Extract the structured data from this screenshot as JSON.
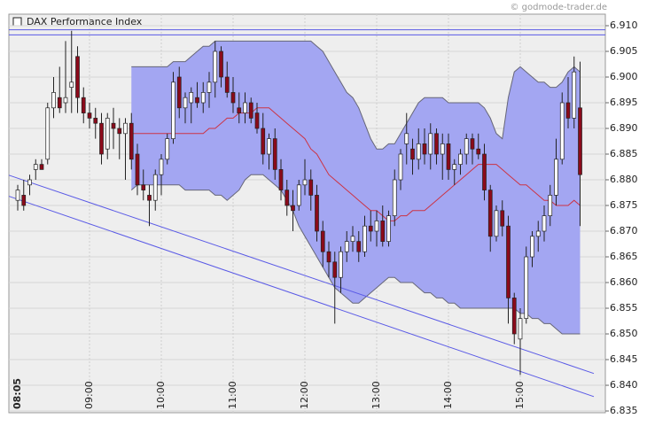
{
  "chart_data": {
    "type": "candlestick",
    "title": "DAX Performance Index",
    "source": "© godmode-trader.de",
    "categories": [
      "08:05",
      null,
      null,
      null,
      null,
      null,
      null,
      null,
      null,
      null,
      null,
      null,
      "09:00",
      null,
      null,
      null,
      null,
      null,
      null,
      null,
      null,
      null,
      null,
      null,
      "10:00",
      null,
      null,
      null,
      null,
      null,
      null,
      null,
      null,
      null,
      null,
      null,
      "11:00",
      null,
      null,
      null,
      null,
      null,
      null,
      null,
      null,
      null,
      null,
      null,
      "12:00",
      null,
      null,
      null,
      null,
      null,
      null,
      null,
      null,
      null,
      null,
      null,
      "13:00",
      null,
      null,
      null,
      null,
      null,
      null,
      null,
      null,
      null,
      null,
      null,
      "14:00",
      null,
      null,
      null,
      null,
      null,
      null,
      null,
      null,
      null,
      null,
      null,
      "15:00",
      null,
      null,
      null,
      null,
      null,
      null,
      null,
      null,
      null,
      null
    ],
    "candles": {
      "up_color": "#ffffff",
      "down_color": "#8b0a1a",
      "open": [
        6876,
        6877,
        6879,
        6882,
        6883,
        6884,
        6894,
        6896,
        6895,
        6898,
        6904,
        6896,
        6893,
        6892,
        6891,
        6886,
        6891,
        6890,
        6889,
        6891,
        6885,
        6879,
        6877,
        6876,
        6881,
        6884,
        6888,
        6900,
        6894,
        6895,
        6896,
        6895,
        6897,
        6899,
        6905,
        6900,
        6897,
        6894,
        6893,
        6895,
        6893,
        6890,
        6885,
        6888,
        6882,
        6878,
        6875,
        6875,
        6879,
        6880,
        6877,
        6870,
        6866,
        6864,
        6861,
        6866,
        6868,
        6868,
        6866,
        6871,
        6870,
        6872,
        6868,
        6873,
        6880,
        6887,
        6886,
        6884,
        6887,
        6885,
        6889,
        6885,
        6887,
        6882,
        6883,
        6885,
        6888,
        6886,
        6885,
        6878,
        6869,
        6874,
        6871,
        6857,
        6849,
        6853,
        6865,
        6869,
        6870,
        6873,
        6877,
        6884,
        6895,
        6892,
        6894
      ],
      "high": [
        6879,
        6880,
        6881,
        6884,
        6884,
        6895,
        6900,
        6902,
        6907,
        6909,
        6906,
        6898,
        6895,
        6894,
        6893,
        6893,
        6894,
        6892,
        6892,
        6893,
        6887,
        6882,
        6879,
        6882,
        6885,
        6889,
        6901,
        6902,
        6897,
        6898,
        6899,
        6899,
        6901,
        6907,
        6906,
        6903,
        6900,
        6897,
        6897,
        6896,
        6895,
        6893,
        6889,
        6890,
        6884,
        6880,
        6878,
        6880,
        6884,
        6882,
        6879,
        6872,
        6868,
        6866,
        6867,
        6870,
        6871,
        6870,
        6873,
        6874,
        6874,
        6875,
        6874,
        6882,
        6886,
        6893,
        6888,
        6890,
        6890,
        6891,
        6890,
        6889,
        6889,
        6884,
        6886,
        6889,
        6889,
        6889,
        6887,
        6879,
        6875,
        6876,
        6873,
        6858,
        6855,
        6867,
        6870,
        6872,
        6875,
        6879,
        6888,
        6897,
        6900,
        6904,
        6903
      ],
      "low": [
        6874,
        6874,
        6877,
        6880,
        6882,
        6883,
        6892,
        6893,
        6893,
        6893,
        6893,
        6891,
        6890,
        6888,
        6883,
        6884,
        6886,
        6884,
        6880,
        6882,
        6877,
        6876,
        6871,
        6874,
        6877,
        6883,
        6887,
        6892,
        6891,
        6891,
        6894,
        6893,
        6894,
        6896,
        6898,
        6896,
        6893,
        6891,
        6891,
        6891,
        6889,
        6883,
        6882,
        6880,
        6876,
        6873,
        6870,
        6874,
        6877,
        6874,
        6868,
        6863,
        6861,
        6852,
        6858,
        6864,
        6866,
        6864,
        6865,
        6868,
        6867,
        6867,
        6867,
        6871,
        6878,
        6883,
        6881,
        6882,
        6883,
        6882,
        6883,
        6880,
        6880,
        6879,
        6881,
        6883,
        6883,
        6884,
        6876,
        6866,
        6868,
        6869,
        6852,
        6848,
        6842,
        6852,
        6863,
        6866,
        6868,
        6871,
        6875,
        6883,
        6890,
        6890,
        6871
      ],
      "close": [
        6878,
        6875,
        6880,
        6883,
        6882,
        6894,
        6897,
        6894,
        6896,
        6899,
        6896,
        6893,
        6892,
        6891,
        6885,
        6892,
        6890,
        6889,
        6891,
        6884,
        6879,
        6878,
        6876,
        6881,
        6884,
        6888,
        6899,
        6894,
        6896,
        6897,
        6895,
        6897,
        6899,
        6905,
        6900,
        6897,
        6895,
        6893,
        6895,
        6892,
        6890,
        6885,
        6888,
        6882,
        6878,
        6875,
        6874,
        6879,
        6880,
        6877,
        6870,
        6866,
        6864,
        6861,
        6866,
        6868,
        6869,
        6866,
        6871,
        6870,
        6872,
        6868,
        6873,
        6880,
        6885,
        6889,
        6884,
        6887,
        6885,
        6889,
        6885,
        6887,
        6882,
        6883,
        6885,
        6888,
        6886,
        6885,
        6878,
        6869,
        6874,
        6871,
        6857,
        6850,
        6853,
        6865,
        6869,
        6870,
        6873,
        6877,
        6884,
        6895,
        6892,
        6901,
        6881
      ]
    },
    "bands": {
      "fill": "#a3a6f2",
      "edge_color": "#666677",
      "middle_color": "#cc3344",
      "upper": [
        null,
        null,
        null,
        null,
        null,
        null,
        null,
        null,
        null,
        null,
        null,
        null,
        null,
        null,
        null,
        null,
        null,
        null,
        null,
        6902,
        6902,
        6902,
        6902,
        6902,
        6902,
        6902,
        6903,
        6903,
        6903,
        6904,
        6905,
        6906,
        6906,
        6907,
        6907,
        6907,
        6907,
        6907,
        6907,
        6907,
        6907,
        6907,
        6907,
        6907,
        6907,
        6907,
        6907,
        6907,
        6907,
        6907,
        6906,
        6905,
        6903,
        6901,
        6899,
        6897,
        6896,
        6894,
        6891,
        6888,
        6886,
        6886,
        6887,
        6887,
        6889,
        6891,
        6893,
        6895,
        6896,
        6896,
        6896,
        6896,
        6895,
        6895,
        6895,
        6895,
        6895,
        6895,
        6894,
        6892,
        6889,
        6888,
        6896,
        6901,
        6902,
        6901,
        6900,
        6899,
        6899,
        6898,
        6898,
        6899,
        6901,
        6902,
        6901
      ],
      "middle": [
        null,
        null,
        null,
        null,
        null,
        null,
        null,
        null,
        null,
        null,
        null,
        null,
        null,
        null,
        null,
        null,
        null,
        null,
        null,
        6889,
        6889,
        6889,
        6889,
        6889,
        6889,
        6889,
        6889,
        6889,
        6889,
        6889,
        6889,
        6889,
        6890,
        6890,
        6891,
        6892,
        6892,
        6893,
        6893,
        6893,
        6894,
        6894,
        6894,
        6893,
        6892,
        6891,
        6890,
        6889,
        6888,
        6886,
        6885,
        6883,
        6881,
        6880,
        6879,
        6878,
        6877,
        6876,
        6875,
        6874,
        6874,
        6873,
        6872,
        6872,
        6873,
        6873,
        6874,
        6874,
        6874,
        6875,
        6876,
        6877,
        6878,
        6879,
        6880,
        6881,
        6882,
        6883,
        6883,
        6883,
        6883,
        6882,
        6881,
        6880,
        6879,
        6879,
        6878,
        6877,
        6876,
        6876,
        6875,
        6875,
        6875,
        6876,
        6875
      ],
      "lower": [
        null,
        null,
        null,
        null,
        null,
        null,
        null,
        null,
        null,
        null,
        null,
        null,
        null,
        null,
        null,
        null,
        null,
        null,
        null,
        6878,
        6879,
        6879,
        6879,
        6879,
        6879,
        6879,
        6879,
        6879,
        6878,
        6878,
        6878,
        6878,
        6878,
        6877,
        6877,
        6876,
        6877,
        6878,
        6880,
        6881,
        6881,
        6881,
        6880,
        6879,
        6878,
        6876,
        6874,
        6871,
        6869,
        6867,
        6865,
        6863,
        6861,
        6859,
        6858,
        6857,
        6856,
        6856,
        6857,
        6858,
        6859,
        6860,
        6861,
        6861,
        6860,
        6860,
        6860,
        6859,
        6858,
        6858,
        6857,
        6857,
        6856,
        6856,
        6855,
        6855,
        6855,
        6855,
        6855,
        6855,
        6855,
        6855,
        6855,
        6855,
        6854,
        6854,
        6853,
        6853,
        6852,
        6852,
        6851,
        6850,
        6850,
        6850,
        6850
      ]
    },
    "trendlines": {
      "color": "#5a5ae6",
      "lines": [
        [
          6880.9,
          6842.3
        ],
        [
          6876.8,
          6837.8
        ]
      ]
    },
    "hlines": [
      6909.2,
      6908.2
    ],
    "ylim": [
      6834.66,
      6912.24
    ],
    "yticks": [
      {
        "value": 6835,
        "label": "6.835"
      },
      {
        "value": 6840,
        "label": "6.840"
      },
      {
        "value": 6845,
        "label": "6.845"
      },
      {
        "value": 6850,
        "label": "6.850"
      },
      {
        "value": 6855,
        "label": "6.855"
      },
      {
        "value": 6860,
        "label": "6.860"
      },
      {
        "value": 6865,
        "label": "6.865"
      },
      {
        "value": 6870,
        "label": "6.870"
      },
      {
        "value": 6875,
        "label": "6.875"
      },
      {
        "value": 6880,
        "label": "6.880"
      },
      {
        "value": 6885,
        "label": "6.885"
      },
      {
        "value": 6890,
        "label": "6.890"
      },
      {
        "value": 6895,
        "label": "6.895"
      },
      {
        "value": 6900,
        "label": "6.900"
      },
      {
        "value": 6905,
        "label": "6.905"
      },
      {
        "value": 6910,
        "label": "6.910"
      }
    ],
    "grid": true
  }
}
